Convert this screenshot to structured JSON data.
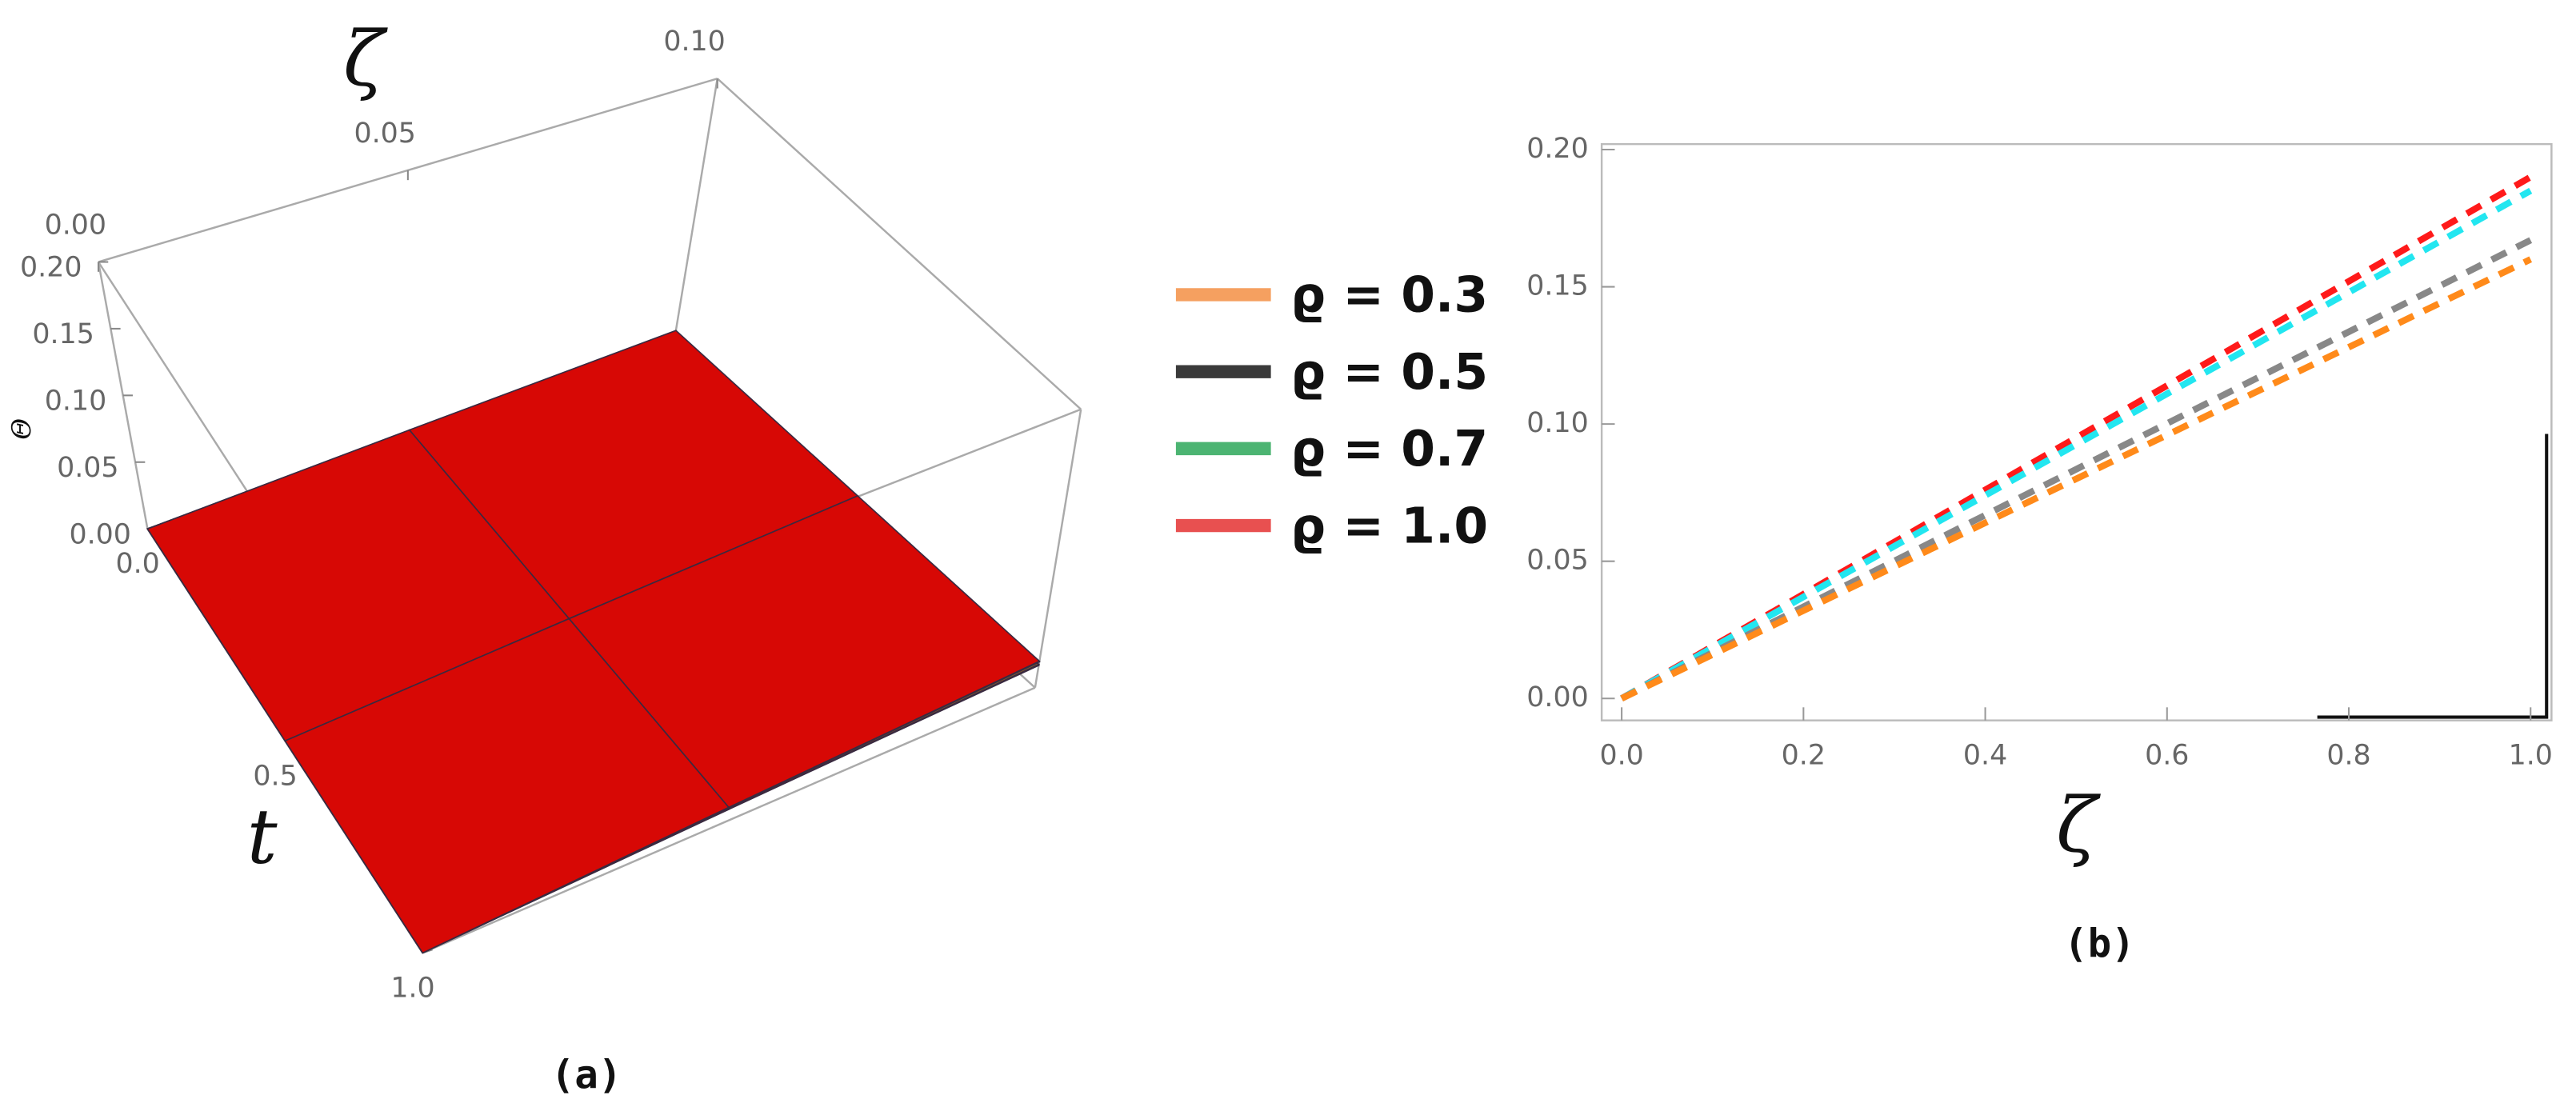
{
  "chart_data": [
    {
      "type": "surface3d",
      "caption": "(a)",
      "xlabel": "ζ",
      "ylabel": "t",
      "zlabel": "Θ",
      "x": [
        0,
        0.05,
        0.1
      ],
      "y": [
        0,
        0.5,
        1
      ],
      "xlim": [
        0,
        0.1
      ],
      "ylim": [
        0,
        1
      ],
      "zlim": [
        0,
        0.2
      ],
      "xticks": [
        {
          "value": 0,
          "label": "0.00"
        },
        0.05,
        {
          "value": 0.1,
          "label": "0.10"
        }
      ],
      "yticks": [
        {
          "value": 0,
          "label": "0.0"
        },
        0.5,
        {
          "value": 1,
          "label": "1.0"
        }
      ],
      "zticks": [
        {
          "value": 0,
          "label": "0.00"
        },
        0.05,
        {
          "value": 0.1,
          "label": "0.10"
        },
        0.15,
        {
          "value": 0.2,
          "label": "0.20"
        }
      ],
      "series": [
        {
          "name": "ϱ = 0.3",
          "color": "#f5a060",
          "surface_color": "#ff6a10",
          "values": [
            [
              0,
              0.008,
              0.016
            ],
            [
              0,
              0.008,
              0.016
            ],
            [
              0,
              0.008,
              0.016
            ]
          ]
        },
        {
          "name": "ϱ = 0.5",
          "color": "#3a3a3a",
          "surface_color": "#7a5a34",
          "values": [
            [
              0,
              0.0084,
              0.0167
            ],
            [
              0,
              0.0084,
              0.0167
            ],
            [
              0,
              0.0084,
              0.0167
            ]
          ]
        },
        {
          "name": "ϱ = 0.7",
          "color": "#4cb472",
          "surface_color": "#22a060",
          "values": [
            [
              0,
              0.0093,
              0.0185
            ],
            [
              0,
              0.0093,
              0.0185
            ],
            [
              0,
              0.0093,
              0.0185
            ]
          ]
        },
        {
          "name": "ϱ = 1.0",
          "color": "#e85050",
          "surface_color": "#e00000",
          "values": [
            [
              0,
              0.0095,
              0.019
            ],
            [
              0,
              0.0095,
              0.019
            ],
            [
              0,
              0.0095,
              0.019
            ]
          ]
        }
      ]
    },
    {
      "type": "line",
      "caption": "(b)",
      "xlabel": "ζ",
      "dashed": true,
      "x": [
        0,
        1
      ],
      "xlim": [
        -0.022,
        1.023
      ],
      "ylim": [
        -0.008,
        0.202
      ],
      "xticks": [
        {
          "value": 0,
          "label": "0.0"
        },
        0.2,
        0.4,
        0.6,
        0.8,
        {
          "value": 1,
          "label": "1.0"
        }
      ],
      "yticks": [
        {
          "value": 0,
          "label": "0.00"
        },
        0.05,
        {
          "value": 0.1,
          "label": "0.10"
        },
        0.15,
        {
          "value": 0.2,
          "label": "0.20"
        }
      ],
      "series": [
        {
          "color": "#ff1a1a",
          "values": [
            0,
            0.19
          ]
        },
        {
          "color": "#22e6f0",
          "values": [
            0,
            0.185
          ]
        },
        {
          "color": "#888888",
          "values": [
            0,
            0.167
          ]
        },
        {
          "color": "#ff8a1a",
          "values": [
            0,
            0.16
          ]
        }
      ]
    }
  ]
}
